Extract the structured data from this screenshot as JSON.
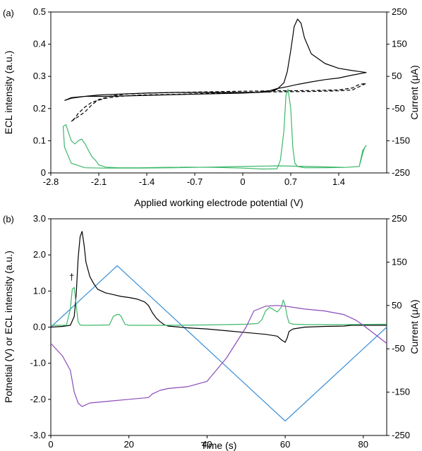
{
  "colors": {
    "black": "#000000",
    "green": "#3db86a",
    "blue": "#3a8fd6",
    "purple": "#8a4cb8"
  },
  "chart_data": [
    {
      "type": "line",
      "panel_label": "(a)",
      "xlabel": "Applied working electrode potential (V)",
      "ylabel": "ECL intensity (a.u.)",
      "y2label": "Current (μA)",
      "xlim": [
        -2.8,
        2.1
      ],
      "ylim": [
        0,
        0.5
      ],
      "y2lim": [
        -250,
        250
      ],
      "xticks": [
        "-2.8",
        "-2.1",
        "-1.4",
        "-0.7",
        "0",
        "0.7",
        "1.4"
      ],
      "xtick_values": [
        -2.8,
        -2.1,
        -1.4,
        -0.7,
        0,
        0.7,
        1.4
      ],
      "yticks": [
        "0",
        "0.1",
        "0.2",
        "0.3",
        "0.4",
        "0.5"
      ],
      "ytick_values": [
        0,
        0.1,
        0.2,
        0.3,
        0.4,
        0.5
      ],
      "y2ticks": [
        "-250",
        "-150",
        "-50",
        "50",
        "150",
        "250"
      ],
      "y2tick_values": [
        -250,
        -150,
        -50,
        50,
        150,
        250
      ],
      "grid": false,
      "series": [
        {
          "axis": "right",
          "color": "#000000",
          "style": "solid",
          "x": [
            -2.6,
            -2.5,
            -2.3,
            -2.1,
            -1.8,
            -1.4,
            -1.0,
            -0.6,
            -0.2,
            0.0,
            0.2,
            0.4,
            0.5,
            0.6,
            0.65,
            0.7,
            0.75,
            0.8,
            0.85,
            0.9,
            1.0,
            1.2,
            1.4,
            1.6,
            1.8,
            1.6,
            1.4,
            1.2,
            1.0,
            0.8,
            0.65,
            0.5,
            0.4,
            0.2,
            0.0,
            -0.4,
            -0.8,
            -1.2,
            -1.6,
            -2.0,
            -2.3,
            -2.5,
            -2.6
          ],
          "y": [
            -25,
            -18,
            -12,
            -8,
            -5,
            -2,
            0,
            0,
            0,
            0,
            0,
            2,
            10,
            30,
            65,
            130,
            205,
            228,
            215,
            170,
            120,
            90,
            75,
            68,
            62,
            54,
            45,
            40,
            33,
            25,
            18,
            12,
            6,
            0,
            -2,
            -4,
            -6,
            -8,
            -10,
            -12,
            -12,
            -16,
            -25
          ]
        },
        {
          "axis": "right",
          "color": "#000000",
          "style": "dashed",
          "x": [
            -2.5,
            -2.4,
            -2.3,
            -2.2,
            -2.1,
            -1.9,
            -1.7,
            -1.4,
            -1.0,
            -0.5,
            0.0,
            0.5,
            1.0,
            1.4,
            1.6,
            1.7,
            1.8,
            1.7,
            1.6,
            1.4,
            1.0,
            0.5,
            0.0,
            -0.5,
            -1.0,
            -1.5,
            -1.8,
            -2.0,
            -2.2,
            -2.3,
            -2.4,
            -2.45,
            -2.5
          ],
          "y": [
            -90,
            -75,
            -60,
            -38,
            -22,
            -10,
            -5,
            -2,
            0,
            2,
            4,
            5,
            6,
            8,
            14,
            25,
            28,
            18,
            8,
            5,
            3,
            2,
            0,
            -3,
            -6,
            -8,
            -12,
            -18,
            -30,
            -45,
            -65,
            -80,
            -90
          ]
        },
        {
          "axis": "left",
          "color": "#3db86a",
          "style": "solid",
          "x": [
            -2.62,
            -2.58,
            -2.55,
            -2.5,
            -2.45,
            -2.4,
            -2.35,
            -2.3,
            -2.25,
            -2.2,
            -2.15,
            -2.1,
            -2.0,
            -1.8,
            -1.5,
            -1.2,
            -0.8,
            -0.4,
            0.0,
            0.3,
            0.5,
            0.55,
            0.6,
            0.63,
            0.66,
            0.7,
            0.73,
            0.76,
            0.8,
            0.9,
            1.2,
            1.5,
            1.7,
            1.75,
            1.8,
            1.78,
            1.75,
            1.7,
            1.5,
            1.0,
            0.5,
            0.0,
            -0.5,
            -1.0,
            -1.5,
            -2.0,
            -2.3,
            -2.5,
            -2.6,
            -2.62
          ],
          "y": [
            0.145,
            0.15,
            0.13,
            0.1,
            0.09,
            0.1,
            0.105,
            0.09,
            0.07,
            0.05,
            0.04,
            0.025,
            0.018,
            0.016,
            0.016,
            0.017,
            0.018,
            0.017,
            0.015,
            0.012,
            0.013,
            0.04,
            0.13,
            0.24,
            0.26,
            0.2,
            0.08,
            0.03,
            0.02,
            0.016,
            0.016,
            0.017,
            0.02,
            0.07,
            0.085,
            0.08,
            0.06,
            0.02,
            0.017,
            0.02,
            0.022,
            0.02,
            0.018,
            0.016,
            0.015,
            0.015,
            0.016,
            0.03,
            0.08,
            0.145
          ]
        }
      ]
    },
    {
      "type": "line",
      "panel_label": "(b)",
      "xlabel": "Time (s)",
      "ylabel": "Potnetial (V) or ECL intensity (a.u.)",
      "y2label": "Current (μA)",
      "xlim": [
        0,
        86
      ],
      "ylim": [
        -3.0,
        3.0
      ],
      "y2lim": [
        -250,
        250
      ],
      "xticks": [
        "0",
        "20",
        "40",
        "60",
        "80"
      ],
      "xtick_values": [
        0,
        20,
        40,
        60,
        80
      ],
      "yticks": [
        "-3.0",
        "-2.0",
        "-1.0",
        "0.0",
        "1.0",
        "2.0",
        "3.0"
      ],
      "ytick_values": [
        -3.0,
        -2.0,
        -1.0,
        0.0,
        1.0,
        2.0,
        3.0
      ],
      "y2ticks": [
        "-250",
        "-150",
        "-50",
        "50",
        "150",
        "250"
      ],
      "y2tick_values": [
        -250,
        -150,
        -50,
        50,
        150,
        250
      ],
      "annotation": "†",
      "grid": false,
      "series": [
        {
          "axis": "left",
          "color": "#3a8fd6",
          "style": "solid",
          "x": [
            0,
            17,
            60,
            86
          ],
          "y": [
            0,
            1.7,
            -2.6,
            0
          ]
        },
        {
          "axis": "left",
          "color": "#000000",
          "style": "solid",
          "x": [
            0,
            3,
            5,
            6,
            6.5,
            7,
            7.5,
            8,
            8.5,
            9,
            10,
            11,
            12,
            14,
            16,
            18,
            20,
            22,
            24,
            25,
            26,
            27,
            28,
            29,
            30,
            35,
            40,
            45,
            50,
            55,
            58,
            59,
            60,
            60.5,
            61,
            62,
            65,
            70,
            75,
            77,
            80,
            86
          ],
          "y": [
            0,
            0.02,
            0.05,
            0.3,
            0.9,
            1.9,
            2.5,
            2.65,
            2.3,
            1.8,
            1.4,
            1.2,
            1.05,
            0.95,
            0.9,
            0.85,
            0.82,
            0.78,
            0.7,
            0.6,
            0.4,
            0.25,
            0.15,
            0.07,
            0.03,
            -0.02,
            -0.05,
            -0.1,
            -0.15,
            -0.2,
            -0.25,
            -0.35,
            -0.42,
            -0.3,
            -0.12,
            -0.05,
            0.0,
            0.02,
            0.03,
            0.05,
            0.05,
            0.05
          ]
        },
        {
          "axis": "left",
          "color": "#3db86a",
          "style": "solid",
          "x": [
            0,
            4,
            5,
            5.5,
            6,
            6.5,
            7,
            7.5,
            8,
            10,
            15,
            16,
            17,
            17.5,
            18,
            19,
            20,
            30,
            40,
            50,
            53,
            54,
            55,
            56,
            57,
            58,
            59,
            59.5,
            60,
            60.5,
            61,
            62,
            65,
            75,
            86
          ],
          "y": [
            0.05,
            0.05,
            0.5,
            1.05,
            1.1,
            0.6,
            0.15,
            0.06,
            0.05,
            0.05,
            0.06,
            0.3,
            0.35,
            0.35,
            0.3,
            0.08,
            0.05,
            0.05,
            0.06,
            0.08,
            0.1,
            0.2,
            0.45,
            0.55,
            0.48,
            0.42,
            0.55,
            0.75,
            0.6,
            0.3,
            0.12,
            0.08,
            0.07,
            0.07,
            0.08
          ]
        },
        {
          "axis": "left",
          "color": "#8a4cb8",
          "style": "solid",
          "x": [
            0,
            3,
            5,
            6,
            7,
            8,
            10,
            15,
            20,
            25,
            26,
            28,
            30,
            35,
            40,
            45,
            50,
            52,
            55,
            58,
            60,
            62,
            65,
            70,
            75,
            78,
            80,
            86
          ],
          "y": [
            -0.45,
            -0.8,
            -1.2,
            -1.8,
            -2.1,
            -2.2,
            -2.1,
            -2.05,
            -2.0,
            -1.95,
            -1.85,
            -1.75,
            -1.7,
            -1.65,
            -1.5,
            -0.85,
            0.0,
            0.45,
            0.58,
            0.6,
            0.58,
            0.55,
            0.5,
            0.45,
            0.35,
            0.2,
            0.05,
            -0.45
          ]
        }
      ]
    }
  ]
}
